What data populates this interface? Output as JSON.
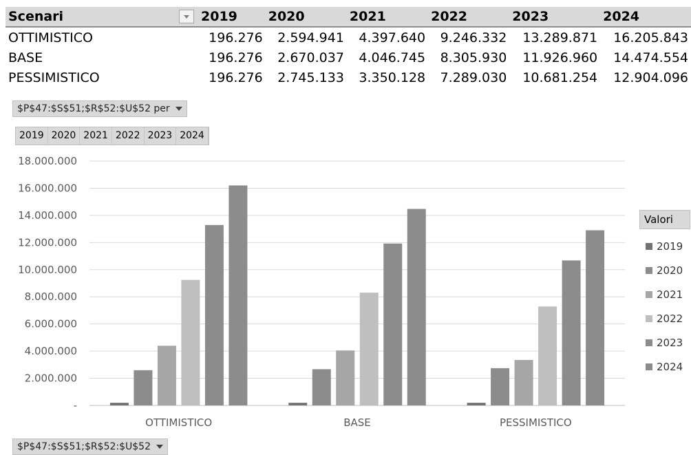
{
  "table": {
    "header_label": "Scenari",
    "years": [
      "2019",
      "2020",
      "2021",
      "2022",
      "2023",
      "2024"
    ],
    "rows": [
      {
        "label": "OTTIMISTICO",
        "values": [
          "196.276",
          "2.594.941",
          "4.397.640",
          "9.246.332",
          "13.289.871",
          "16.205.843"
        ]
      },
      {
        "label": "BASE",
        "values": [
          "196.276",
          "2.670.037",
          "4.046.745",
          "8.305.930",
          "11.926.960",
          "14.474.554"
        ]
      },
      {
        "label": "PESSIMISTICO",
        "values": [
          "196.276",
          "2.745.133",
          "3.350.128",
          "7.289.030",
          "10.681.254",
          "12.904.096"
        ]
      }
    ]
  },
  "chart_field_top": "$P$47:$S$51;$R$52:$U$52  per",
  "chart_field_bottom": "$P$47:$S$51;$R$52:$U$52",
  "legend_title": "Valori",
  "chart_data": {
    "type": "bar",
    "categories": [
      "OTTIMISTICO",
      "BASE",
      "PESSIMISTICO"
    ],
    "series": [
      {
        "name": "2019",
        "color": "#737373",
        "values": [
          196276,
          196276,
          196276
        ]
      },
      {
        "name": "2020",
        "color": "#8c8c8c",
        "values": [
          2594941,
          2670037,
          2745133
        ]
      },
      {
        "name": "2021",
        "color": "#a6a6a6",
        "values": [
          4397640,
          4046745,
          3350128
        ]
      },
      {
        "name": "2022",
        "color": "#bfbfbf",
        "values": [
          9246332,
          8305930,
          7289030
        ]
      },
      {
        "name": "2023",
        "color": "#8c8c8c",
        "values": [
          13289871,
          11926960,
          10681254
        ]
      },
      {
        "name": "2024",
        "color": "#8c8c8c",
        "values": [
          16205843,
          14474554,
          12904096
        ]
      }
    ],
    "ylim": [
      0,
      18000000
    ],
    "yticks": [
      "-",
      "2.000.000",
      "4.000.000",
      "6.000.000",
      "8.000.000",
      "10.000.000",
      "12.000.000",
      "14.000.000",
      "16.000.000",
      "18.000.000"
    ],
    "grid": true,
    "legend_position": "right"
  }
}
